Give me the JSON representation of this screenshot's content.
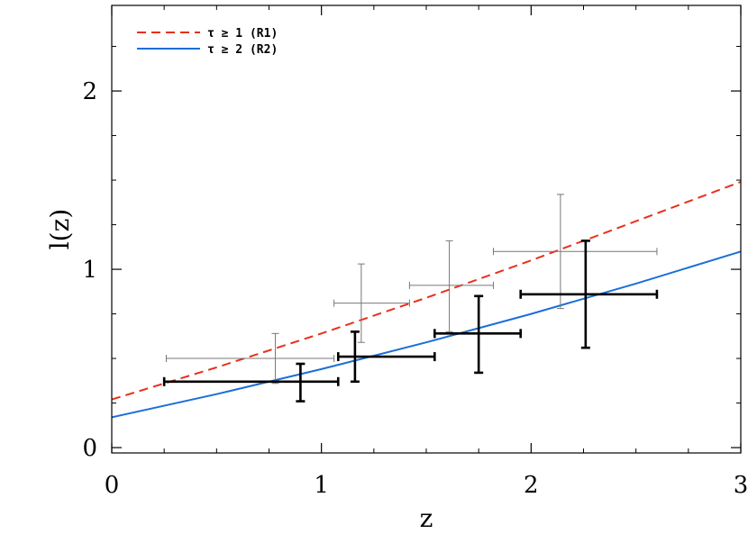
{
  "chart_data": {
    "type": "scatter",
    "xlabel": "z",
    "ylabel": "l(z)",
    "xlim": [
      0,
      3
    ],
    "ylim": [
      -0.03,
      2.48
    ],
    "x_ticks": [
      0,
      1,
      2,
      3
    ],
    "y_ticks": [
      0,
      1,
      2
    ],
    "x_tick_labels": [
      "0",
      "1",
      "2",
      "3"
    ],
    "y_tick_labels": [
      "0",
      "1",
      "2"
    ],
    "x_minor_step": 0.25,
    "y_minor_step": 0.25,
    "grid": false,
    "legend_position": "top-left",
    "curves": [
      {
        "name": "τ ≥ 1 (R1)",
        "style": "dashed",
        "color": "#e8301c",
        "x": [
          0,
          0.5,
          1,
          1.5,
          2,
          2.5,
          3
        ],
        "y": [
          0.27,
          0.45,
          0.64,
          0.84,
          1.05,
          1.27,
          1.49
        ]
      },
      {
        "name": "τ ≥ 2 (R2)",
        "style": "solid",
        "color": "#1a6fd8",
        "x": [
          0,
          0.5,
          1,
          1.5,
          2,
          2.5,
          3
        ],
        "y": [
          0.17,
          0.3,
          0.44,
          0.59,
          0.75,
          0.92,
          1.1
        ]
      }
    ],
    "errorbar_series": [
      {
        "style": "thin",
        "color": "#777777",
        "points": [
          {
            "x": 0.78,
            "y": 0.5,
            "x_lo": 0.26,
            "x_hi": 1.06,
            "y_lo": 0.36,
            "y_hi": 0.64
          },
          {
            "x": 1.19,
            "y": 0.81,
            "x_lo": 1.06,
            "x_hi": 1.42,
            "y_lo": 0.59,
            "y_hi": 1.03
          },
          {
            "x": 1.61,
            "y": 0.91,
            "x_lo": 1.42,
            "x_hi": 1.82,
            "y_lo": 0.65,
            "y_hi": 1.16
          },
          {
            "x": 2.14,
            "y": 1.1,
            "x_lo": 1.82,
            "x_hi": 2.6,
            "y_lo": 0.78,
            "y_hi": 1.42
          }
        ]
      },
      {
        "style": "thick",
        "color": "#000000",
        "points": [
          {
            "x": 0.9,
            "y": 0.37,
            "x_lo": 0.25,
            "x_hi": 1.08,
            "y_lo": 0.26,
            "y_hi": 0.47
          },
          {
            "x": 1.16,
            "y": 0.51,
            "x_lo": 1.08,
            "x_hi": 1.54,
            "y_lo": 0.37,
            "y_hi": 0.65
          },
          {
            "x": 1.75,
            "y": 0.64,
            "x_lo": 1.54,
            "x_hi": 1.95,
            "y_lo": 0.42,
            "y_hi": 0.85
          },
          {
            "x": 2.26,
            "y": 0.86,
            "x_lo": 1.95,
            "x_hi": 2.6,
            "y_lo": 0.56,
            "y_hi": 1.16
          }
        ]
      }
    ]
  }
}
